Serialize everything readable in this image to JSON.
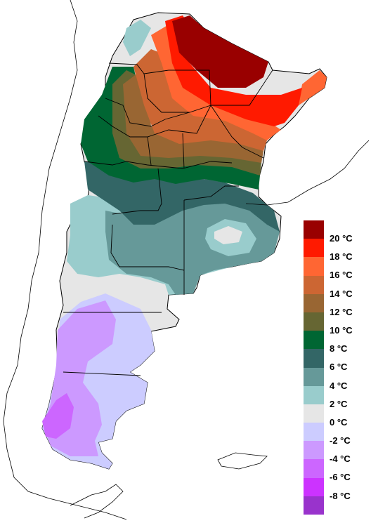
{
  "legend": {
    "entries": [
      {
        "label": "20 °C",
        "color": "#990000"
      },
      {
        "label": "18 °C",
        "color": "#ff1a00"
      },
      {
        "label": "16 °C",
        "color": "#ff6633"
      },
      {
        "label": "14 °C",
        "color": "#cc6633"
      },
      {
        "label": "12 °C",
        "color": "#996633"
      },
      {
        "label": "10 °C",
        "color": "#666633"
      },
      {
        "label": "8 °C",
        "color": "#006633"
      },
      {
        "label": "6 °C",
        "color": "#336666"
      },
      {
        "label": "4 °C",
        "color": "#669999"
      },
      {
        "label": "2 °C",
        "color": "#99cccc"
      },
      {
        "label": "0 °C",
        "color": "#e6e6e6"
      },
      {
        "label": "-2 °C",
        "color": "#ccccff"
      },
      {
        "label": "-4 °C",
        "color": "#cc99ff"
      },
      {
        "label": "-6 °C",
        "color": "#cc66ff"
      },
      {
        "label": "-8 °C",
        "color": "#cc33ff"
      },
      {
        "label": "",
        "color": "#9933cc"
      }
    ]
  },
  "map": {
    "outline_color": "#000000",
    "land_neighbors_color": "#ffffff"
  }
}
